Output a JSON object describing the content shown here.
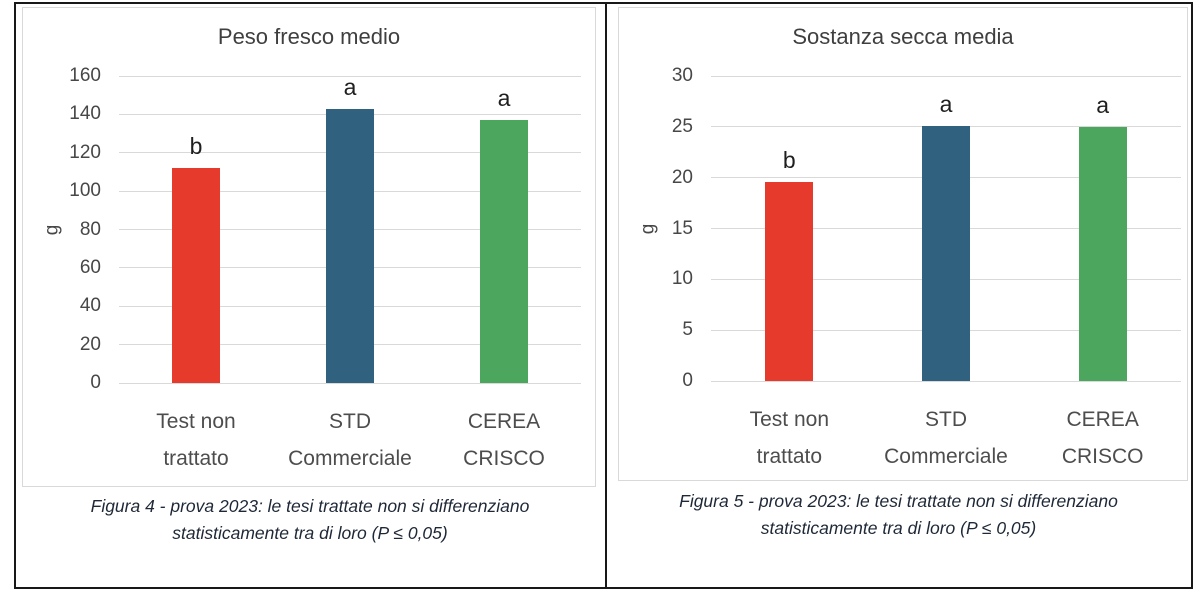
{
  "figure": {
    "panels": [
      {
        "caption_lines": [
          "Figura 4 - prova 2023: le tesi trattate non si differenziano",
          "statisticamente tra di loro (P ≤ 0,05)"
        ]
      },
      {
        "caption_lines": [
          "Figura 5 - prova 2023: le tesi trattate non si differenziano",
          "statisticamente tra di loro (P ≤ 0,05)"
        ]
      }
    ],
    "border_color": "#181818",
    "gridline_color": "#d9d9d9"
  },
  "chart_data": [
    {
      "type": "bar",
      "title": "Peso fresco medio",
      "xlabel": "",
      "ylabel": "g",
      "ylim": [
        0,
        160
      ],
      "ytick_step": 20,
      "grid": true,
      "legend": "none",
      "categories": [
        "Test non trattato",
        "STD Commerciale",
        "CEREA CRISCO"
      ],
      "category_lines": [
        [
          "Test non",
          "trattato"
        ],
        [
          "STD",
          "Commerciale"
        ],
        [
          "CEREA",
          "CRISCO"
        ]
      ],
      "values": [
        112,
        143,
        137
      ],
      "sig_letters": [
        "b",
        "a",
        "a"
      ],
      "bar_colors": [
        "#e53a2c",
        "#30627f",
        "#4ca65e"
      ]
    },
    {
      "type": "bar",
      "title": "Sostanza secca media",
      "xlabel": "",
      "ylabel": "g",
      "ylim": [
        0,
        30
      ],
      "ytick_step": 5,
      "grid": true,
      "legend": "none",
      "categories": [
        "Test non trattato",
        "STD Commerciale",
        "CEREA CRISCO"
      ],
      "category_lines": [
        [
          "Test non",
          "trattato"
        ],
        [
          "STD",
          "Commerciale"
        ],
        [
          "CEREA",
          "CRISCO"
        ]
      ],
      "values": [
        19.6,
        25.1,
        25
      ],
      "sig_letters": [
        "b",
        "a",
        "a"
      ],
      "bar_colors": [
        "#e53a2c",
        "#30627f",
        "#4ca65e"
      ]
    }
  ]
}
